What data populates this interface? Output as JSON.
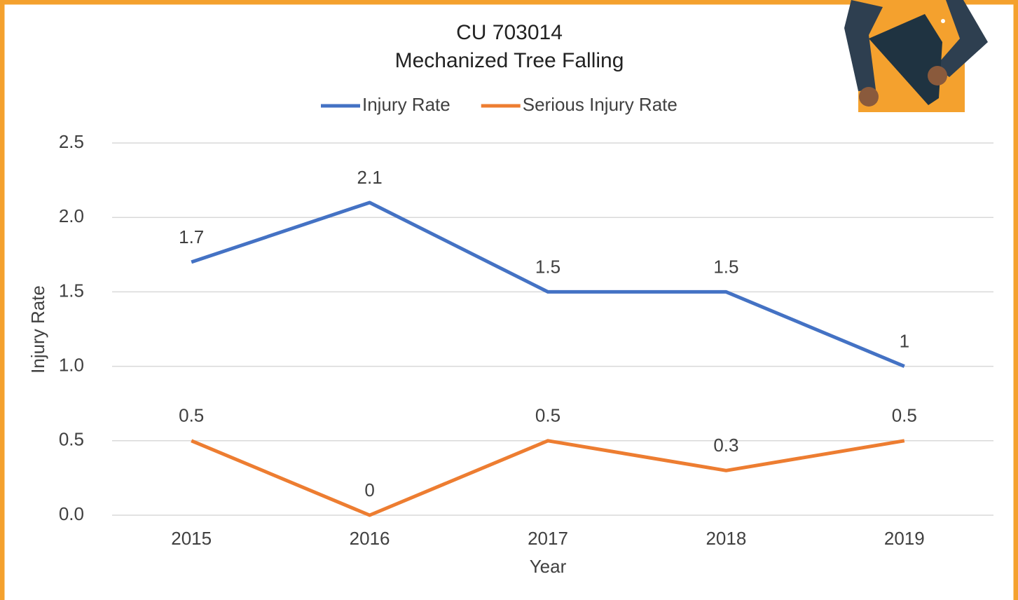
{
  "chart_data": {
    "type": "line",
    "title": [
      "CU 703014",
      "Mechanized Tree Falling"
    ],
    "x_label": "Year",
    "y_label": "Injury Rate",
    "categories": [
      "2015",
      "2016",
      "2017",
      "2018",
      "2019"
    ],
    "series": [
      {
        "name": "Injury Rate",
        "color": "#4472c4",
        "values": [
          1.7,
          2.1,
          1.5,
          1.5,
          1
        ]
      },
      {
        "name": "Serious Injury Rate",
        "color": "#ed7d31",
        "values": [
          0.5,
          0,
          0.5,
          0.3,
          0.5
        ]
      }
    ],
    "ylim": [
      0,
      2.5
    ],
    "yticks": [
      {
        "value": 0,
        "label": "0.0"
      },
      0.5,
      {
        "value": 1,
        "label": "1.0"
      },
      1.5,
      {
        "value": 2,
        "label": "2.0"
      },
      2.5
    ],
    "grid": true,
    "legend": "top"
  }
}
